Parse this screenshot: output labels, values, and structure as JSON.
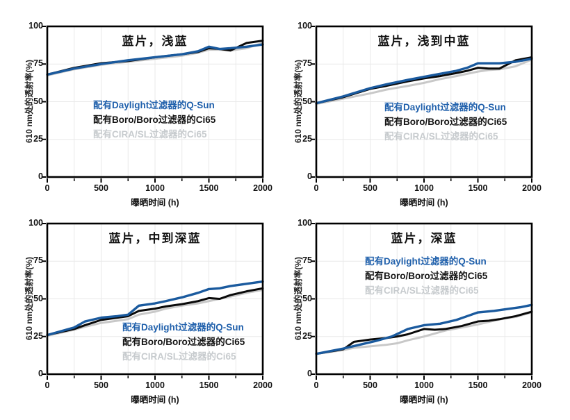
{
  "colors": {
    "qsun_blue": "#1a5a9e",
    "ci65_black": "#0a0a0a",
    "cira_gray": "#c8c8c8",
    "grid": "#e9e9e9",
    "axis": "#000000"
  },
  "chart_data": [
    {
      "type": "line",
      "title": "蓝片，浅蓝",
      "xlabel": "曝晒时间 (h)",
      "ylabel": "610 nm处的透射率(%)",
      "xlim": [
        0,
        2000
      ],
      "ylim": [
        0,
        100
      ],
      "xticks": [
        0,
        500,
        1000,
        1500,
        2000
      ],
      "yticks": [
        0,
        25,
        50,
        75,
        100
      ],
      "minor_x_step": 250,
      "grid": true,
      "legend_position": "center-left-inside",
      "series": [
        {
          "key": "qsun",
          "name": "配有Daylight过滤器的Q-Sun",
          "color": "#1a5a9e",
          "x": [
            0,
            250,
            500,
            750,
            1000,
            1250,
            1400,
            1500,
            1600,
            1700,
            1850,
            2000
          ],
          "y": [
            68,
            72,
            75,
            77.5,
            79.5,
            81.5,
            83.5,
            86.5,
            85,
            85.5,
            86.5,
            88
          ]
        },
        {
          "key": "boro",
          "name": "配有Boro/Boro过滤器的Ci65",
          "color": "#0a0a0a",
          "x": [
            0,
            250,
            500,
            750,
            1000,
            1250,
            1400,
            1500,
            1600,
            1700,
            1850,
            2000
          ],
          "y": [
            68,
            72.5,
            75.5,
            77,
            79.5,
            81.5,
            83,
            85.5,
            85,
            84,
            89,
            90.5
          ]
        },
        {
          "key": "cira",
          "name": "配有CIRA/SL过滤器的Ci65",
          "color": "#c8c8c8",
          "x": [
            0,
            250,
            500,
            750,
            1000,
            1250,
            1400,
            1500,
            1600,
            1700,
            1850,
            2000
          ],
          "y": [
            67.5,
            71.5,
            74.5,
            76.5,
            78.5,
            80.5,
            82.5,
            84.5,
            84.5,
            84,
            85.5,
            89
          ]
        }
      ]
    },
    {
      "type": "line",
      "title": "蓝片，浅到中蓝",
      "xlabel": "曝晒时间 (h)",
      "ylabel": "610 nm处的透射率(%)",
      "xlim": [
        0,
        2000
      ],
      "ylim": [
        0,
        100
      ],
      "xticks": [
        0,
        500,
        1000,
        1500,
        2000
      ],
      "yticks": [
        0,
        25,
        50,
        75,
        100
      ],
      "minor_x_step": 250,
      "grid": true,
      "legend_position": "center-inside",
      "series": [
        {
          "key": "qsun",
          "name": "配有Daylight过滤器的Q-Sun",
          "color": "#1a5a9e",
          "x": [
            0,
            250,
            500,
            650,
            850,
            1000,
            1150,
            1300,
            1400,
            1500,
            1600,
            1700,
            1850,
            2000
          ],
          "y": [
            49,
            53.5,
            59,
            61.5,
            64.5,
            66.5,
            68.5,
            70.5,
            72.5,
            75.5,
            75.5,
            75.5,
            76.5,
            78.5
          ]
        },
        {
          "key": "boro",
          "name": "配有Boro/Boro过滤器的Ci65",
          "color": "#0a0a0a",
          "x": [
            0,
            250,
            500,
            650,
            850,
            1000,
            1150,
            1300,
            1400,
            1500,
            1600,
            1700,
            1850,
            2000
          ],
          "y": [
            49,
            53,
            58.5,
            60.5,
            63.5,
            65.5,
            67,
            69,
            70.5,
            72.5,
            72,
            72,
            77.5,
            79.5
          ]
        },
        {
          "key": "cira",
          "name": "配有CIRA/SL过滤器的Ci65",
          "color": "#c8c8c8",
          "x": [
            0,
            250,
            500,
            650,
            850,
            1000,
            1150,
            1300,
            1400,
            1500,
            1600,
            1700,
            1850,
            2000
          ],
          "y": [
            48.5,
            52,
            55.5,
            58,
            60.5,
            62.5,
            65,
            67,
            68.5,
            70,
            71,
            71.5,
            73.5,
            78
          ]
        }
      ]
    },
    {
      "type": "line",
      "title": "蓝片，中到深蓝",
      "xlabel": "曝晒时间 (h)",
      "ylabel": "610 nm处的透射率(%)",
      "xlim": [
        0,
        2000
      ],
      "ylim": [
        0,
        100
      ],
      "xticks": [
        0,
        500,
        1000,
        1500,
        2000
      ],
      "yticks": [
        0,
        25,
        50,
        75,
        100
      ],
      "minor_x_step": 250,
      "grid": true,
      "legend_position": "lower-center-inside",
      "series": [
        {
          "key": "qsun",
          "name": "配有Daylight过滤器的Q-Sun",
          "color": "#1a5a9e",
          "x": [
            0,
            250,
            350,
            500,
            650,
            750,
            850,
            1000,
            1100,
            1250,
            1400,
            1500,
            1600,
            1700,
            1850,
            2000
          ],
          "y": [
            26,
            31,
            35,
            37.5,
            38.5,
            39.5,
            45.5,
            47,
            48.5,
            51,
            54,
            56.5,
            57,
            58.5,
            60,
            61.5
          ]
        },
        {
          "key": "boro",
          "name": "配有Boro/Boro过滤器的Ci65",
          "color": "#0a0a0a",
          "x": [
            0,
            250,
            350,
            500,
            650,
            750,
            850,
            1000,
            1100,
            1250,
            1400,
            1500,
            1600,
            1700,
            1850,
            2000
          ],
          "y": [
            26,
            30,
            32.5,
            36,
            37.5,
            38.5,
            42,
            43.5,
            45,
            46.5,
            48.5,
            50.5,
            50,
            52.5,
            55,
            57
          ]
        },
        {
          "key": "cira",
          "name": "配有CIRA/SL过滤器的Ci65",
          "color": "#c8c8c8",
          "x": [
            0,
            250,
            350,
            500,
            650,
            750,
            850,
            1000,
            1100,
            1250,
            1400,
            1500,
            1600,
            1700,
            1850,
            2000
          ],
          "y": [
            25.5,
            29.5,
            31.5,
            34,
            35.5,
            36.5,
            39.5,
            41.5,
            43.5,
            45.5,
            47,
            48.5,
            50,
            51.5,
            54,
            56
          ]
        }
      ]
    },
    {
      "type": "line",
      "title": "蓝片，深蓝",
      "xlabel": "曝晒时间 (h)",
      "ylabel": "610 nm处的透射率(%)",
      "xlim": [
        0,
        2000
      ],
      "ylim": [
        0,
        100
      ],
      "xticks": [
        0,
        500,
        1000,
        1500,
        2000
      ],
      "yticks": [
        0,
        25,
        50,
        75,
        100
      ],
      "minor_x_step": 250,
      "grid": true,
      "legend_position": "upper-center-inside",
      "series": [
        {
          "key": "qsun",
          "name": "配有Daylight过滤器的Q-Sun",
          "color": "#1a5a9e",
          "x": [
            0,
            250,
            400,
            550,
            700,
            850,
            1000,
            1150,
            1300,
            1400,
            1500,
            1650,
            1800,
            1900,
            2000
          ],
          "y": [
            13.5,
            17,
            19.5,
            22,
            25,
            30,
            32.5,
            33.5,
            36,
            38.5,
            41,
            42,
            43.5,
            44.5,
            46
          ]
        },
        {
          "key": "boro",
          "name": "配有Boro/Boro过滤器的Ci65",
          "color": "#0a0a0a",
          "x": [
            0,
            250,
            350,
            500,
            650,
            750,
            850,
            1000,
            1100,
            1200,
            1350,
            1500,
            1600,
            1700,
            1850,
            2000
          ],
          "y": [
            13.5,
            16.5,
            21.5,
            23,
            24,
            25,
            26.5,
            30,
            29.5,
            30,
            32,
            35,
            35.5,
            36.5,
            38.5,
            41.5
          ]
        },
        {
          "key": "cira",
          "name": "配有CIRA/SL过滤器的Ci65",
          "color": "#c8c8c8",
          "x": [
            0,
            250,
            350,
            500,
            650,
            750,
            850,
            1000,
            1100,
            1200,
            1350,
            1500,
            1650,
            1750,
            1850,
            2000
          ],
          "y": [
            13.5,
            16,
            17.5,
            18.5,
            19.5,
            20.5,
            22.5,
            25,
            27,
            29,
            31,
            33,
            35.5,
            37,
            38,
            41
          ]
        }
      ]
    }
  ]
}
